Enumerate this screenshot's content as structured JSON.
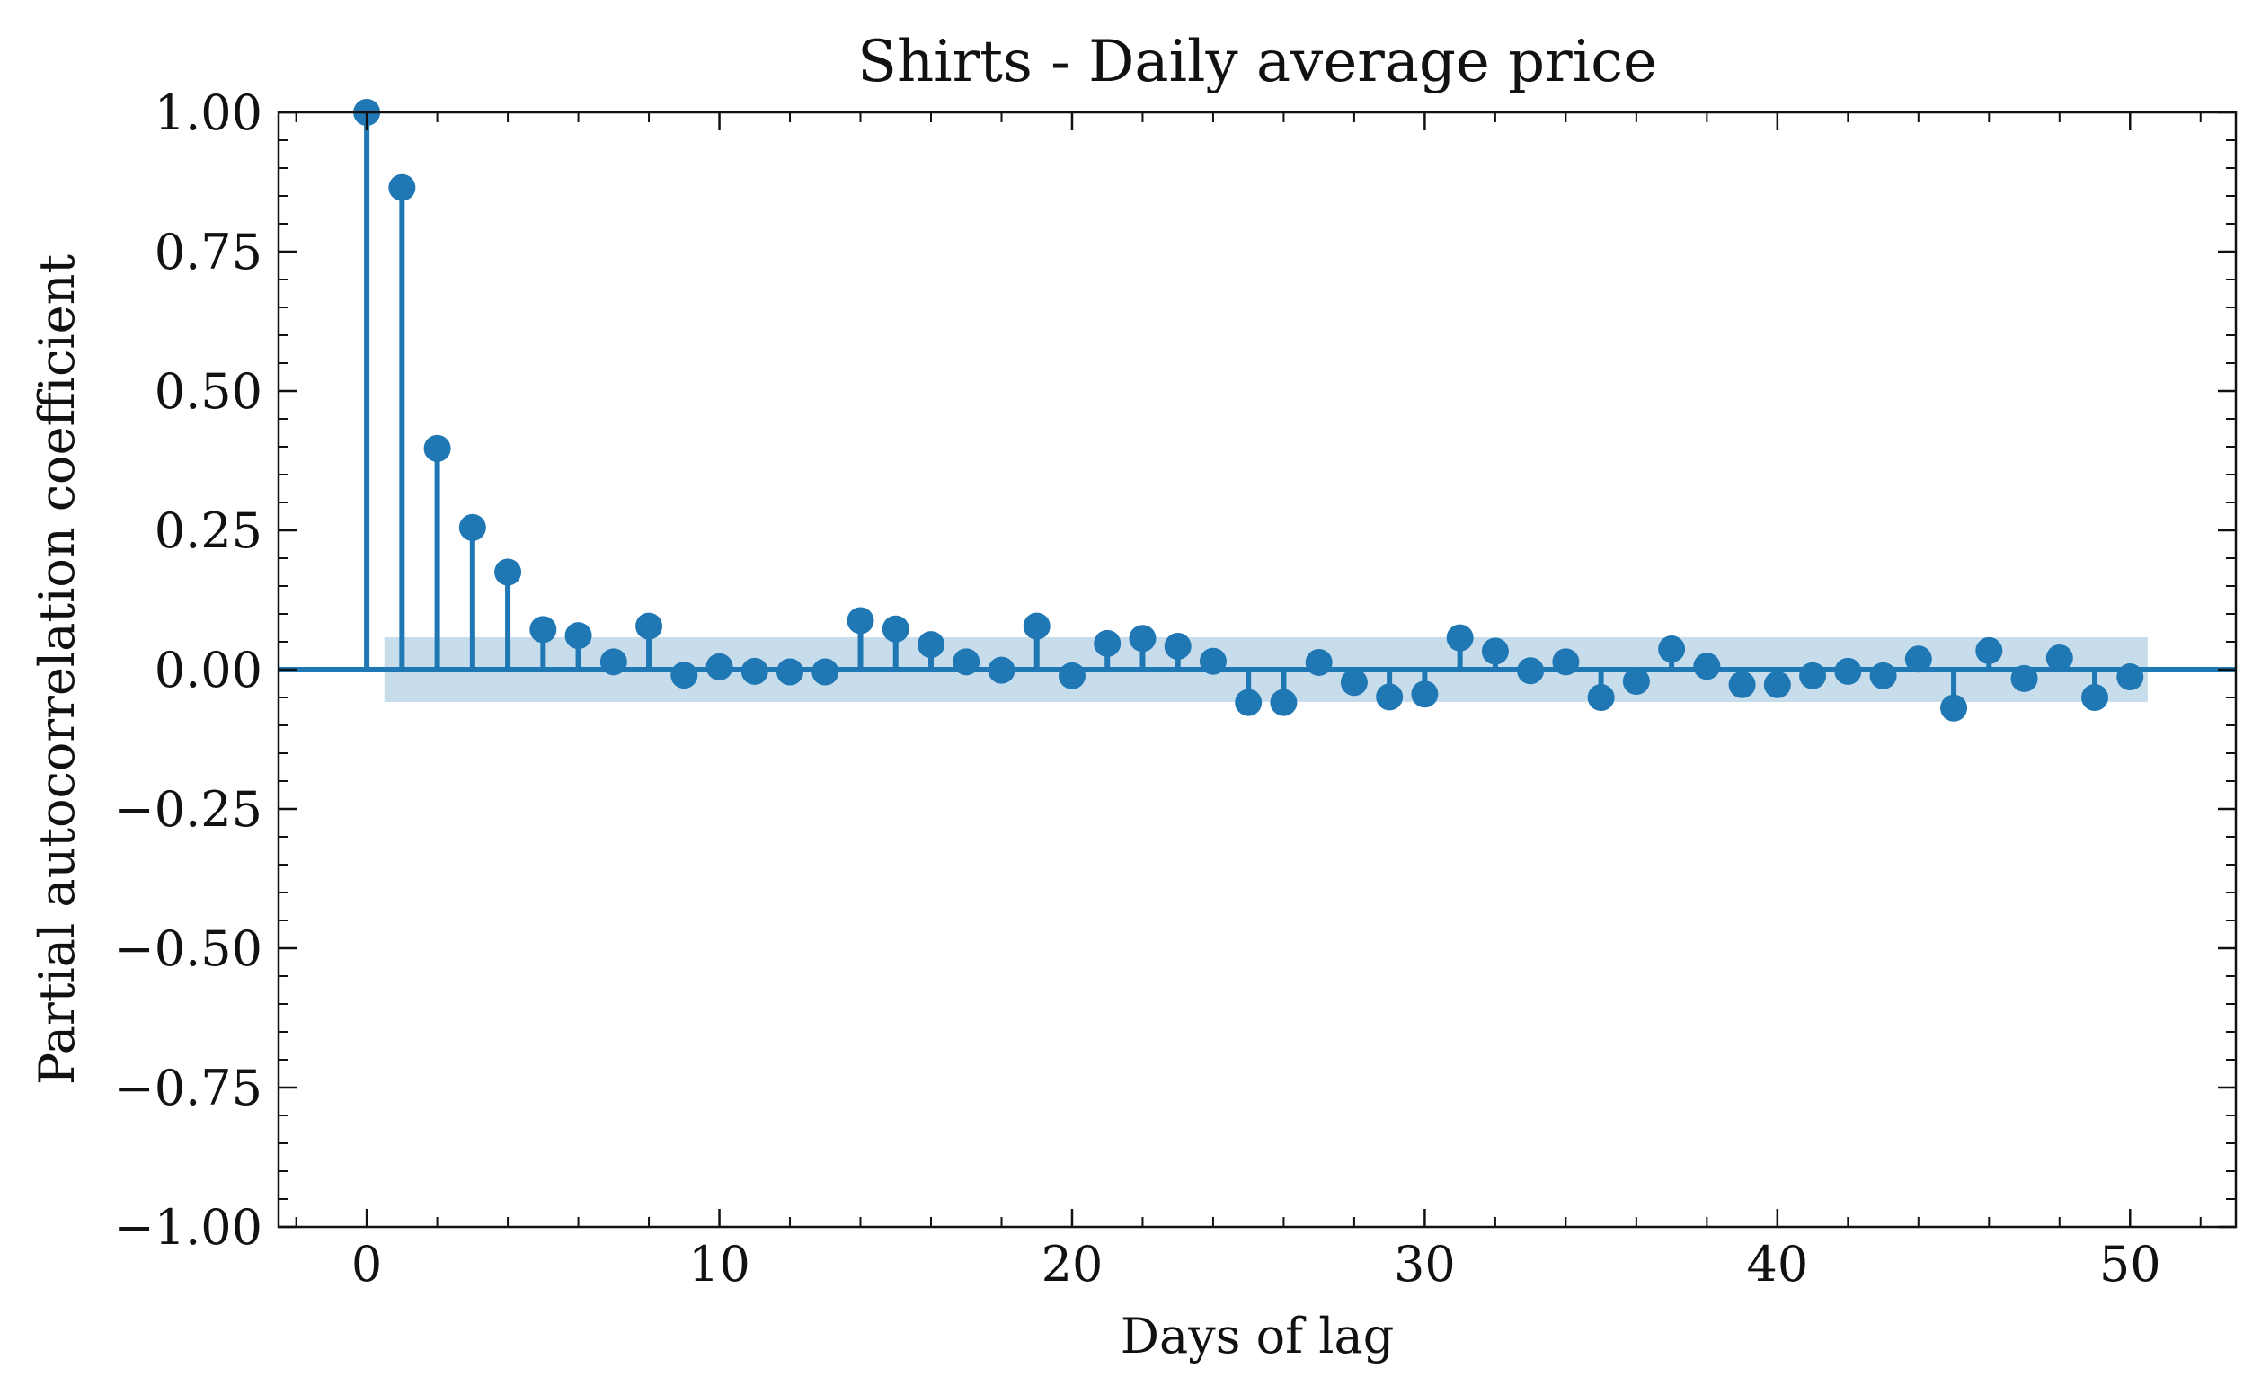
{
  "chart_data": {
    "type": "stem",
    "title": "Shirts - Daily average price",
    "xlabel": "Days of lag",
    "ylabel": "Partial autocorrelation coefficient",
    "xlim": [
      -2.5,
      53
    ],
    "ylim": [
      -1.0,
      1.0
    ],
    "x_ticks": [
      0,
      10,
      20,
      30,
      40,
      50
    ],
    "x_tick_labels": [
      "0",
      "10",
      "20",
      "30",
      "40",
      "50"
    ],
    "y_ticks": [
      1.0,
      0.75,
      0.5,
      0.25,
      0.0,
      -0.25,
      -0.5,
      -0.75,
      -1.0
    ],
    "y_tick_labels": [
      "1.00",
      "0.75",
      "0.50",
      "0.25",
      "0.00",
      "−0.25",
      "−0.50",
      "−0.75",
      "−1.00"
    ],
    "lags": [
      0,
      1,
      2,
      3,
      4,
      5,
      6,
      7,
      8,
      9,
      10,
      11,
      12,
      13,
      14,
      15,
      16,
      17,
      18,
      19,
      20,
      21,
      22,
      23,
      24,
      25,
      26,
      27,
      28,
      29,
      30,
      31,
      32,
      33,
      34,
      35,
      36,
      37,
      38,
      39,
      40,
      41,
      42,
      43,
      44,
      45,
      46,
      47,
      48,
      49,
      50
    ],
    "values": [
      1.0,
      0.865,
      0.397,
      0.255,
      0.175,
      0.072,
      0.061,
      0.014,
      0.078,
      -0.01,
      0.005,
      -0.003,
      -0.004,
      -0.004,
      0.088,
      0.073,
      0.045,
      0.014,
      -0.001,
      0.078,
      -0.011,
      0.047,
      0.056,
      0.042,
      0.015,
      -0.059,
      -0.059,
      0.013,
      -0.023,
      -0.049,
      -0.044,
      0.057,
      0.033,
      -0.002,
      0.014,
      -0.05,
      -0.021,
      0.037,
      0.006,
      -0.027,
      -0.027,
      -0.011,
      -0.003,
      -0.011,
      0.019,
      -0.069,
      0.034,
      -0.016,
      0.021,
      -0.05,
      -0.013
    ],
    "confidence_band": {
      "lower": -0.058,
      "upper": 0.058,
      "x_from": 0.5,
      "x_to": 50.5
    },
    "grid": false,
    "legend": "none",
    "colors": {
      "stem": "#1f77b4",
      "band": "#1f77b4",
      "band_opacity": 0.25,
      "axes": "#111111"
    }
  }
}
